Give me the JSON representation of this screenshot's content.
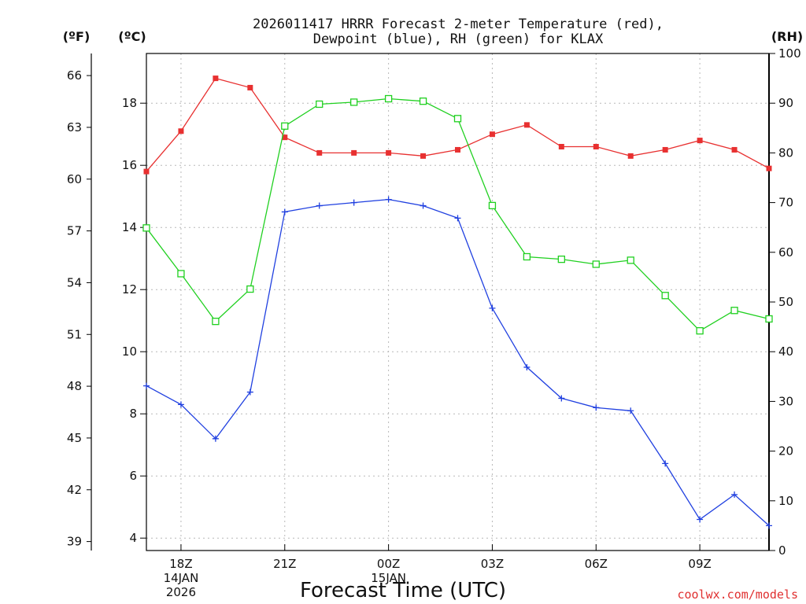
{
  "chart_data": {
    "type": "line",
    "title_lines": [
      "2026011417 HRRR Forecast 2-meter Temperature (red),",
      "Dewpoint (blue), RH (green) for KLAX"
    ],
    "xlabel": "Forecast Time (UTC)",
    "credit": "coolwx.com/models",
    "units": {
      "fahrenheit": "(ºF)",
      "celsius": "(ºC)",
      "rh": "(RH)"
    },
    "x_hours": [
      17,
      18,
      19,
      20,
      21,
      22,
      23,
      24,
      25,
      26,
      27,
      28,
      29,
      30,
      31,
      32,
      33,
      34,
      35
    ],
    "x_range": [
      17,
      35
    ],
    "x_ticks": [
      {
        "hour": 18,
        "lines": [
          "18Z",
          "14JAN",
          "2026"
        ]
      },
      {
        "hour": 21,
        "lines": [
          "21Z"
        ]
      },
      {
        "hour": 24,
        "lines": [
          "00Z",
          "15JAN"
        ]
      },
      {
        "hour": 27,
        "lines": [
          "03Z"
        ]
      },
      {
        "hour": 30,
        "lines": [
          "06Z"
        ]
      },
      {
        "hour": 33,
        "lines": [
          "09Z"
        ]
      }
    ],
    "celsius_axis": {
      "range": [
        3.6,
        19.6
      ],
      "ticks": [
        "4",
        "6",
        "8",
        "10",
        "12",
        "14",
        "16",
        "18"
      ]
    },
    "fahrenheit_axis": {
      "ticks": [
        "39",
        "42",
        "45",
        "48",
        "51",
        "54",
        "57",
        "60",
        "63",
        "66"
      ]
    },
    "rh_axis": {
      "range": [
        0,
        100
      ],
      "ticks": [
        "0",
        "10",
        "20",
        "30",
        "40",
        "50",
        "60",
        "70",
        "80",
        "90",
        "100"
      ]
    },
    "series": [
      {
        "name": "2-meter Temperature",
        "unit": "°C",
        "color": "#e83030",
        "marker": "filled-square",
        "values": [
          15.8,
          17.1,
          18.8,
          18.5,
          16.9,
          16.4,
          16.4,
          16.4,
          16.3,
          16.5,
          17.0,
          17.3,
          16.6,
          16.6,
          16.3,
          16.5,
          16.8,
          16.5,
          15.9
        ]
      },
      {
        "name": "Dewpoint",
        "unit": "°C",
        "color": "#2040e0",
        "marker": "plus",
        "values": [
          8.9,
          8.3,
          7.2,
          8.7,
          14.5,
          14.7,
          14.8,
          14.9,
          14.7,
          14.3,
          11.4,
          9.5,
          8.5,
          8.2,
          8.1,
          6.4,
          4.6,
          5.4,
          4.4
        ]
      },
      {
        "name": "Relative Humidity",
        "unit": "%",
        "color": "#20d020",
        "marker": "open-square",
        "values": [
          64.9,
          55.7,
          46.1,
          52.6,
          85.4,
          89.8,
          90.2,
          90.9,
          90.4,
          86.9,
          69.4,
          59.1,
          58.6,
          57.6,
          58.4,
          51.3,
          44.2,
          48.3,
          46.6
        ]
      }
    ]
  }
}
